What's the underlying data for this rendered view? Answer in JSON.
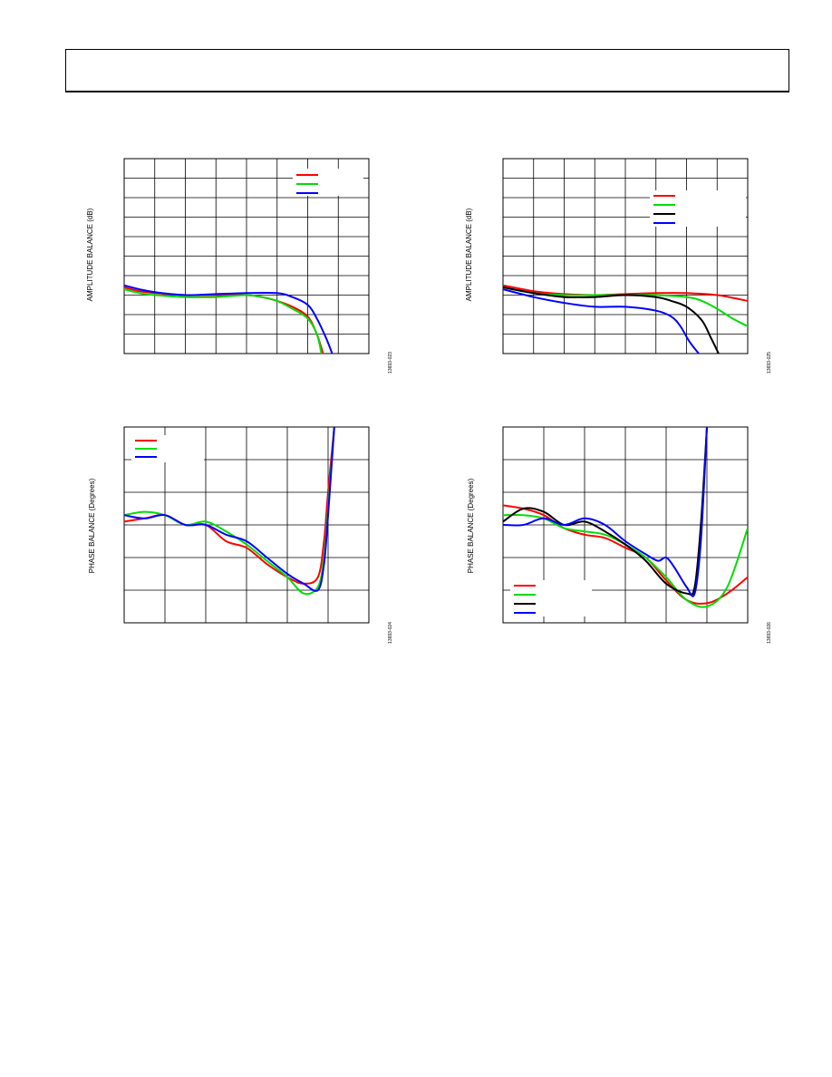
{
  "page": {
    "charts": [
      {
        "ylabel": "AMPLITUDE BALANCE (dB)",
        "fig_id": "13693-023"
      },
      {
        "ylabel": "AMPLITUDE BALANCE (dB)",
        "fig_id": "13693-025"
      },
      {
        "ylabel": "PHASE BALANCE (Degrees)",
        "fig_id": "13693-024"
      },
      {
        "ylabel": "PHASE BALANCE (Degrees)",
        "fig_id": "13693-026"
      }
    ]
  },
  "chart_data": [
    {
      "type": "line",
      "title": "",
      "xlabel": "",
      "ylabel": "AMPLITUDE BALANCE (dB)",
      "xlim": [
        0,
        8
      ],
      "ylim": [
        -3,
        7
      ],
      "grid": true,
      "legend_position": "top-right",
      "series": [
        {
          "color": "#ff0000",
          "points": [
            [
              0,
              0.4
            ],
            [
              0.5,
              0.2
            ],
            [
              1,
              0.1
            ],
            [
              2,
              0
            ],
            [
              3,
              0
            ],
            [
              4,
              0
            ],
            [
              4.5,
              -0.1
            ],
            [
              5,
              -0.3
            ],
            [
              5.5,
              -0.6
            ],
            [
              6,
              -1.1
            ],
            [
              6.3,
              -2
            ],
            [
              6.5,
              -3
            ]
          ]
        },
        {
          "color": "#00dd00",
          "points": [
            [
              0,
              0.3
            ],
            [
              0.5,
              0.1
            ],
            [
              1,
              0
            ],
            [
              2,
              -0.1
            ],
            [
              3,
              -0.1
            ],
            [
              4,
              0
            ],
            [
              4.5,
              -0.1
            ],
            [
              5,
              -0.3
            ],
            [
              5.5,
              -0.7
            ],
            [
              6,
              -1.2
            ],
            [
              6.3,
              -2
            ],
            [
              6.45,
              -3
            ]
          ]
        },
        {
          "color": "#0000ff",
          "points": [
            [
              0,
              0.5
            ],
            [
              0.5,
              0.3
            ],
            [
              1,
              0.15
            ],
            [
              2,
              0
            ],
            [
              3,
              0.05
            ],
            [
              4,
              0.1
            ],
            [
              5,
              0.1
            ],
            [
              5.5,
              -0.1
            ],
            [
              6,
              -0.5
            ],
            [
              6.3,
              -1.2
            ],
            [
              6.6,
              -2.2
            ],
            [
              6.8,
              -3
            ]
          ]
        }
      ]
    },
    {
      "type": "line",
      "title": "",
      "xlabel": "",
      "ylabel": "AMPLITUDE BALANCE (dB)",
      "xlim": [
        0,
        8
      ],
      "ylim": [
        -3,
        7
      ],
      "grid": true,
      "legend_position": "top-right",
      "series": [
        {
          "color": "#ff0000",
          "points": [
            [
              0,
              0.5
            ],
            [
              1,
              0.2
            ],
            [
              2,
              0.05
            ],
            [
              3,
              0
            ],
            [
              4,
              0.05
            ],
            [
              5,
              0.1
            ],
            [
              6,
              0.1
            ],
            [
              7,
              0
            ],
            [
              8,
              -0.3
            ]
          ]
        },
        {
          "color": "#00dd00",
          "points": [
            [
              0,
              0.4
            ],
            [
              1,
              0.1
            ],
            [
              2,
              0
            ],
            [
              3,
              0
            ],
            [
              4,
              0
            ],
            [
              5,
              0
            ],
            [
              6,
              -0.1
            ],
            [
              6.5,
              -0.3
            ],
            [
              7,
              -0.7
            ],
            [
              7.5,
              -1.2
            ],
            [
              8,
              -1.6
            ]
          ]
        },
        {
          "color": "#000000",
          "points": [
            [
              0,
              0.4
            ],
            [
              1,
              0.1
            ],
            [
              2,
              -0.1
            ],
            [
              3,
              -0.1
            ],
            [
              4,
              0
            ],
            [
              5,
              -0.1
            ],
            [
              5.5,
              -0.3
            ],
            [
              6,
              -0.6
            ],
            [
              6.5,
              -1.3
            ],
            [
              6.8,
              -2.2
            ],
            [
              7.05,
              -3
            ]
          ]
        },
        {
          "color": "#0000ff",
          "points": [
            [
              0,
              0.3
            ],
            [
              1,
              -0.1
            ],
            [
              2,
              -0.4
            ],
            [
              3,
              -0.6
            ],
            [
              4,
              -0.6
            ],
            [
              5,
              -0.8
            ],
            [
              5.5,
              -1.1
            ],
            [
              5.8,
              -1.6
            ],
            [
              6.1,
              -2.4
            ],
            [
              6.4,
              -3
            ]
          ]
        }
      ]
    },
    {
      "type": "line",
      "title": "",
      "xlabel": "",
      "ylabel": "PHASE BALANCE (Degrees)",
      "xlim": [
        0,
        6
      ],
      "ylim": [
        -3,
        3
      ],
      "grid": true,
      "legend_position": "top-left",
      "series": [
        {
          "color": "#ff0000",
          "points": [
            [
              0,
              0.1
            ],
            [
              0.5,
              0.2
            ],
            [
              1,
              0.3
            ],
            [
              1.5,
              0
            ],
            [
              2,
              0
            ],
            [
              2.5,
              -0.5
            ],
            [
              3,
              -0.7
            ],
            [
              3.5,
              -1.2
            ],
            [
              4,
              -1.6
            ],
            [
              4.4,
              -1.8
            ],
            [
              4.75,
              -1.6
            ],
            [
              4.9,
              -0.5
            ],
            [
              5,
              1
            ],
            [
              5.15,
              3
            ]
          ]
        },
        {
          "color": "#00dd00",
          "points": [
            [
              0,
              0.3
            ],
            [
              0.5,
              0.4
            ],
            [
              1,
              0.3
            ],
            [
              1.5,
              0
            ],
            [
              2,
              0.1
            ],
            [
              2.5,
              -0.2
            ],
            [
              3,
              -0.6
            ],
            [
              3.5,
              -1.1
            ],
            [
              4,
              -1.6
            ],
            [
              4.4,
              -2.1
            ],
            [
              4.75,
              -1.9
            ],
            [
              4.9,
              -1
            ],
            [
              5,
              0.5
            ],
            [
              5.15,
              3
            ]
          ]
        },
        {
          "color": "#0000ff",
          "points": [
            [
              0,
              0.3
            ],
            [
              0.5,
              0.2
            ],
            [
              1,
              0.3
            ],
            [
              1.5,
              0
            ],
            [
              2,
              0
            ],
            [
              2.5,
              -0.3
            ],
            [
              3,
              -0.5
            ],
            [
              3.5,
              -1
            ],
            [
              4,
              -1.5
            ],
            [
              4.4,
              -1.8
            ],
            [
              4.75,
              -2
            ],
            [
              4.9,
              -1.2
            ],
            [
              5,
              0.3
            ],
            [
              5.15,
              3
            ]
          ]
        }
      ]
    },
    {
      "type": "line",
      "title": "",
      "xlabel": "",
      "ylabel": "PHASE BALANCE (Degrees)",
      "xlim": [
        0,
        6
      ],
      "ylim": [
        -3,
        3
      ],
      "grid": true,
      "legend_position": "bottom-left",
      "series": [
        {
          "color": "#ff0000",
          "points": [
            [
              0,
              0.6
            ],
            [
              0.5,
              0.5
            ],
            [
              1,
              0.3
            ],
            [
              1.5,
              -0.1
            ],
            [
              2,
              -0.3
            ],
            [
              2.5,
              -0.4
            ],
            [
              3,
              -0.7
            ],
            [
              3.5,
              -1
            ],
            [
              4,
              -1.7
            ],
            [
              4.5,
              -2.3
            ],
            [
              5,
              -2.4
            ],
            [
              5.5,
              -2.1
            ],
            [
              6,
              -1.6
            ]
          ]
        },
        {
          "color": "#00dd00",
          "points": [
            [
              0,
              0.3
            ],
            [
              0.5,
              0.3
            ],
            [
              1,
              0.2
            ],
            [
              1.5,
              -0.1
            ],
            [
              2,
              -0.2
            ],
            [
              2.5,
              -0.3
            ],
            [
              3,
              -0.6
            ],
            [
              3.5,
              -1
            ],
            [
              4,
              -1.6
            ],
            [
              4.5,
              -2.3
            ],
            [
              5,
              -2.5
            ],
            [
              5.5,
              -1.9
            ],
            [
              6,
              -0.1
            ]
          ]
        },
        {
          "color": "#000000",
          "points": [
            [
              0,
              0.1
            ],
            [
              0.5,
              0.5
            ],
            [
              1,
              0.4
            ],
            [
              1.5,
              0
            ],
            [
              2,
              0.1
            ],
            [
              2.5,
              -0.2
            ],
            [
              3,
              -0.6
            ],
            [
              3.5,
              -1.1
            ],
            [
              4,
              -1.8
            ],
            [
              4.5,
              -2.1
            ],
            [
              4.7,
              -1.9
            ],
            [
              4.85,
              0
            ],
            [
              5,
              3
            ]
          ]
        },
        {
          "color": "#0000ff",
          "points": [
            [
              0,
              0
            ],
            [
              0.5,
              0
            ],
            [
              1,
              0.2
            ],
            [
              1.5,
              0
            ],
            [
              2,
              0.2
            ],
            [
              2.5,
              0
            ],
            [
              3,
              -0.5
            ],
            [
              3.5,
              -0.9
            ],
            [
              3.8,
              -1.1
            ],
            [
              4,
              -1
            ],
            [
              4.2,
              -1.3
            ],
            [
              4.5,
              -1.9
            ],
            [
              4.7,
              -2.1
            ],
            [
              4.85,
              -0.5
            ],
            [
              5,
              3
            ]
          ]
        }
      ]
    }
  ]
}
